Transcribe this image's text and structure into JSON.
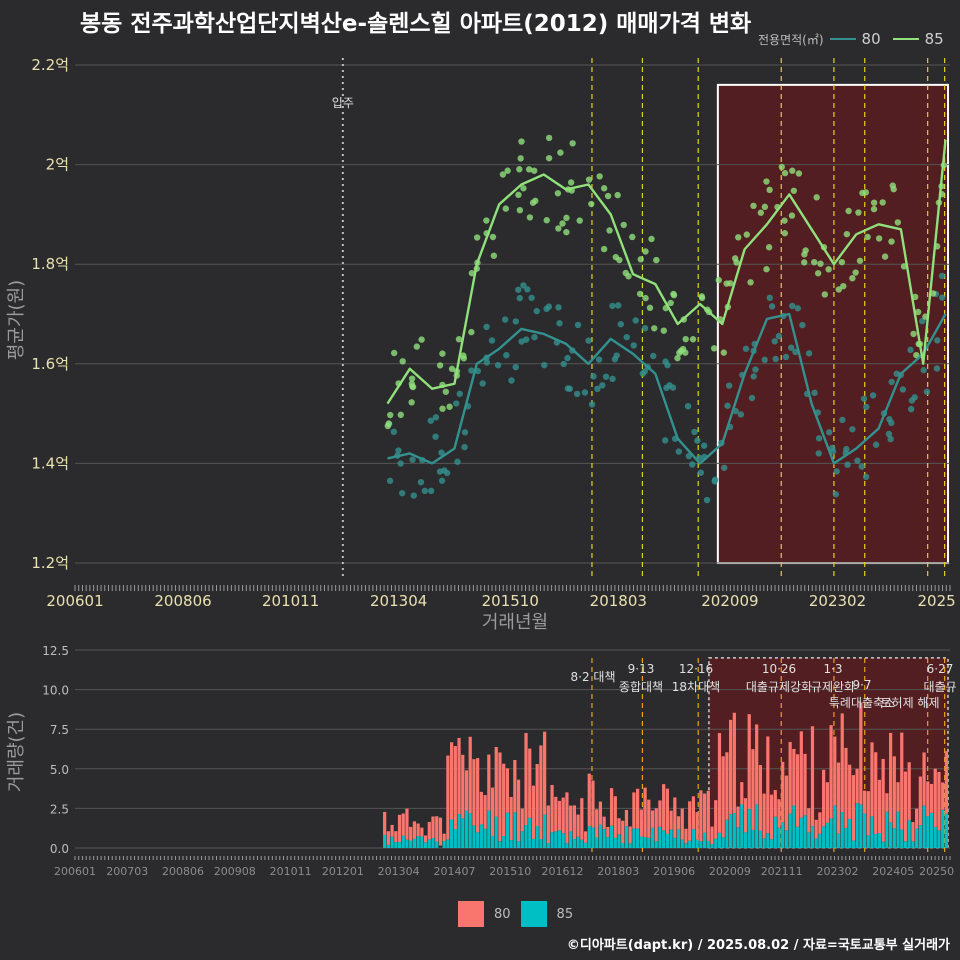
{
  "title": "봉동 전주과학산업단지벽산e-솔렌스힐 아파트(2012) 매매가격 변화",
  "credit": "©디아파트(dapt.kr) / 2025.08.02 / 자료=국토교통부 실거래가",
  "colors": {
    "s80_line": "#33918f",
    "s85_line": "#90e07c",
    "bar80": "#f8766d",
    "bar85": "#00bfc4",
    "vline": "#e6d21a",
    "vline2": "#e8a317",
    "shade": "#5a1c20"
  },
  "chart_data": [
    {
      "type": "line",
      "title": "봉동 전주과학산업단지벽산e-솔렌스힐 아파트(2012) 매매가격 변화",
      "xlabel": "거래년월",
      "ylabel": "평균가(원)",
      "ylim": [
        1.17,
        2.23
      ],
      "x_ticks": [
        "200601",
        "200806",
        "201011",
        "201304",
        "201510",
        "201803",
        "202009",
        "202302",
        "2025"
      ],
      "y_ticks": [
        "1.2억",
        "1.4억",
        "1.6억",
        "1.8억",
        "2억",
        "2.2억"
      ],
      "legend_title": "전용면적(㎡)",
      "series": [
        {
          "name": "80",
          "x": [
            2013.0,
            2013.5,
            2014.0,
            2014.5,
            2015.0,
            2015.5,
            2016.0,
            2016.5,
            2017.0,
            2017.5,
            2018.0,
            2018.5,
            2019.0,
            2019.5,
            2020.0,
            2020.5,
            2021.0,
            2021.5,
            2022.0,
            2022.5,
            2023.0,
            2023.5,
            2024.0,
            2024.5,
            2025.0,
            2025.5
          ],
          "values": [
            1.41,
            1.42,
            1.4,
            1.43,
            1.6,
            1.63,
            1.67,
            1.66,
            1.64,
            1.6,
            1.65,
            1.62,
            1.58,
            1.45,
            1.4,
            1.44,
            1.58,
            1.69,
            1.7,
            1.52,
            1.4,
            1.43,
            1.47,
            1.58,
            1.62,
            1.7
          ]
        },
        {
          "name": "85",
          "x": [
            2013.0,
            2013.5,
            2014.0,
            2014.5,
            2015.0,
            2015.5,
            2016.0,
            2016.5,
            2017.0,
            2017.5,
            2018.0,
            2018.5,
            2019.0,
            2019.5,
            2020.0,
            2020.5,
            2021.0,
            2021.5,
            2022.0,
            2022.5,
            2023.0,
            2023.5,
            2024.0,
            2024.5,
            2025.0,
            2025.5
          ],
          "values": [
            1.52,
            1.59,
            1.55,
            1.56,
            1.8,
            1.92,
            1.96,
            1.98,
            1.95,
            1.96,
            1.9,
            1.78,
            1.76,
            1.68,
            1.72,
            1.68,
            1.83,
            1.88,
            1.94,
            1.87,
            1.8,
            1.86,
            1.88,
            1.87,
            1.6,
            2.05
          ]
        }
      ],
      "annotations": [
        {
          "x": "2012.0",
          "label": "입주"
        }
      ]
    },
    {
      "type": "bar",
      "ylabel": "거래량(건)",
      "ylim": [
        0,
        12.5
      ],
      "y_ticks": [
        "0.0",
        "2.5",
        "5.0",
        "7.5",
        "10.0",
        "12.5"
      ],
      "x_ticks": [
        "200601",
        "200703",
        "200806",
        "200908",
        "201011",
        "201201",
        "201304",
        "201407",
        "201510",
        "201612",
        "201803",
        "201906",
        "202009",
        "202111",
        "202302",
        "202405",
        "20250"
      ],
      "legend": [
        "80",
        "85"
      ],
      "policy_labels": [
        {
          "date": "8·2 대책",
          "desc": ""
        },
        {
          "date": "9·13",
          "desc": "종합대책"
        },
        {
          "date": "12·16",
          "desc": "18차대책"
        },
        {
          "date": "10·26",
          "desc": "대출규제강화"
        },
        {
          "date": "1·3",
          "desc": "규제완화"
        },
        {
          "date": "9·7",
          "desc": "특례대출축소"
        },
        {
          "date": "",
          "desc": "토허제 해제"
        },
        {
          "date": "6·27",
          "desc": "대출규"
        }
      ]
    }
  ]
}
